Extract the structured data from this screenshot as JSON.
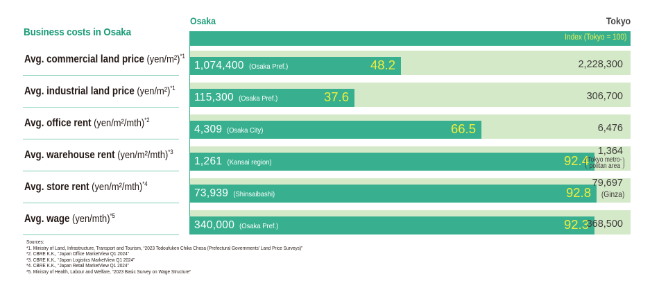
{
  "title": "Business costs in Osaka",
  "header": {
    "osaka": "Osaka",
    "tokyo": "Tokyo",
    "index_label": "Index (Tokyo = 100)"
  },
  "colors": {
    "accent": "#1a9b77",
    "bar": "#38b08f",
    "track": "#d4e9c8",
    "index_text": "#f2ee3c",
    "separator": "#7fcdb5"
  },
  "chart_data": {
    "type": "bar",
    "orientation": "horizontal",
    "title": "Business costs in Osaka",
    "xlabel": "Index (Tokyo = 100)",
    "xlim": [
      0,
      100
    ],
    "grid": false,
    "categories": [
      "Avg. commercial land price (yen/m²)*1",
      "Avg. industrial land price (yen/m²)*1",
      "Avg. office rent (yen/m²/mth)*2",
      "Avg. warehouse rent (yen/m²/mth)*3",
      "Avg. store rent (yen/m²/mth)*4",
      "Avg. wage (yen/mth)*5"
    ],
    "series": [
      {
        "name": "Osaka index (Tokyo = 100)",
        "values": [
          48.2,
          37.6,
          66.5,
          92.4,
          92.8,
          92.3
        ]
      },
      {
        "name": "Tokyo",
        "values": [
          100,
          100,
          100,
          100,
          100,
          100
        ]
      }
    ]
  },
  "rows": [
    {
      "name_bold": "Avg. commercial land price",
      "unit": " (yen/m²)",
      "note": "*1",
      "osaka_value": "1,074,400",
      "osaka_area": "(Osaka Pref.)",
      "index": 48.2,
      "index_text": "48.2",
      "tokyo_value": "2,228,300",
      "tokyo_area": ""
    },
    {
      "name_bold": "Avg. industrial land price",
      "unit": " (yen/m²)",
      "note": "*1",
      "osaka_value": "115,300",
      "osaka_area": "(Osaka Pref.)",
      "index": 37.6,
      "index_text": "37.6",
      "tokyo_value": "306,700",
      "tokyo_area": ""
    },
    {
      "name_bold": "Avg. office rent",
      "unit": " (yen/m²/mth)",
      "note": "*2",
      "osaka_value": "4,309",
      "osaka_area": "(Osaka City)",
      "index": 66.5,
      "index_text": "66.5",
      "tokyo_value": "6,476",
      "tokyo_area": ""
    },
    {
      "name_bold": "Avg. warehouse rent",
      "unit": " (yen/m²/mth)",
      "note": "*3",
      "osaka_value": "1,261",
      "osaka_area": "(Kansai region)",
      "index": 92.4,
      "index_text": "92.4",
      "tokyo_value": "1,364",
      "tokyo_area": "( Tokyo metro- )\n( politan area )",
      "tokyo_area_line1": "Tokyo metro-",
      "tokyo_area_line2": "politan area"
    },
    {
      "name_bold": "Avg. store rent",
      "unit": " (yen/m²/mth)",
      "note": "*4",
      "osaka_value": "73,939",
      "osaka_area": "(Shinsaibashi)",
      "index": 92.8,
      "index_text": "92.8",
      "tokyo_value": "79,697",
      "tokyo_area": "(Ginza)"
    },
    {
      "name_bold": "Avg. wage",
      "unit": " (yen/mth)",
      "note": "*5",
      "osaka_value": "340,000",
      "osaka_area": "(Osaka Pref.)",
      "index": 92.3,
      "index_text": "92.3",
      "tokyo_value": "368,500",
      "tokyo_area": ""
    }
  ],
  "sources": {
    "heading": "Sources:",
    "items": [
      "*1. Ministry of Land, Infrastructure, Transport and Tourism, “2023 Todoufuken Chika Chosa (Prefectural Governments' Land Price Surveys)”",
      "*2. CBRE K.K., “Japan Office MarketView Q1 2024”",
      "*3. CBRE K.K., “Japan Logistics MarketView Q1 2024”",
      "*4. CBRE K.K., “Japan Retail MarketView Q1 2024”",
      "*5. Ministry of Health, Labour and Welfare, “2023 Basic Survey on Wage Structure”"
    ]
  }
}
